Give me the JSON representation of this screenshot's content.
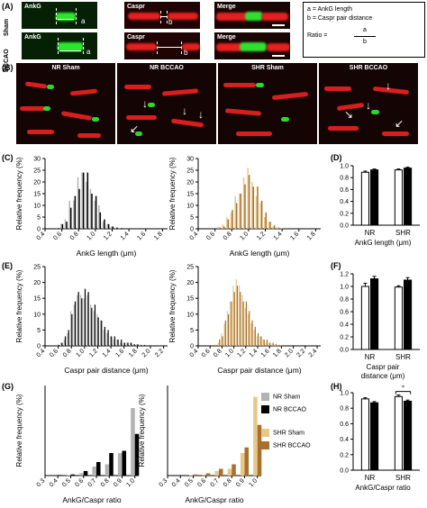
{
  "panel_labels": {
    "A": "(A)",
    "B": "(B)",
    "C": "(C)",
    "D": "(D)",
    "E": "(E)",
    "F": "(F)",
    "G": "(G)",
    "H": "(H)"
  },
  "panelA": {
    "rows": [
      "Sham",
      "BCCAO"
    ],
    "cols": [
      "AnkG",
      "Caspr",
      "Merge"
    ],
    "marks": {
      "a": "a",
      "b": "b"
    },
    "legend": {
      "line1": "a = AnkG length",
      "line2": "b = Caspr pair distance",
      "ratio_label": "Ratio  =",
      "num": "a",
      "den": "b"
    }
  },
  "panelB": {
    "titles": [
      "NR Sham",
      "NR BCCAO",
      "SHR Sham",
      "SHR BCCAO"
    ]
  },
  "legend_nr": {
    "sham": "NR Sham",
    "bccao": "NR BCCAO"
  },
  "legend_shr": {
    "sham": "SHR Sham",
    "bccao": "SHR BCCAO"
  },
  "colors": {
    "nr_sham": "#b3b3b3",
    "nr_bccao": "#000000",
    "shr_sham": "#e6c98a",
    "shr_bccao": "#a86f2e"
  },
  "chart_data": [
    {
      "id": "C-left",
      "type": "bar",
      "ylabel": "Relative frequency (%)",
      "xlabel": "AnkG length (μm)",
      "ylim": [
        0,
        30
      ],
      "yticks": [
        0,
        5,
        10,
        15,
        20,
        25,
        30
      ],
      "xticks": [
        "0.4",
        "0.6",
        "0.8",
        "1.0",
        "1.2",
        "1.4",
        "1.6",
        "1.8"
      ],
      "x": [
        0.55,
        0.6,
        0.65,
        0.7,
        0.75,
        0.8,
        0.85,
        0.9,
        0.95,
        1.0,
        1.05,
        1.1,
        1.15,
        1.2,
        1.25,
        1.3
      ],
      "series": [
        {
          "name": "NR Sham",
          "values": [
            0.5,
            2,
            4,
            12,
            12,
            22,
            24,
            20,
            17,
            12,
            10,
            3,
            2,
            1,
            0.5,
            0.3
          ]
        },
        {
          "name": "NR BCCAO",
          "values": [
            0.3,
            2,
            3,
            9,
            14,
            17,
            24,
            24,
            15,
            14,
            7,
            4,
            2,
            1,
            0.5,
            0.3
          ]
        }
      ]
    },
    {
      "id": "C-right",
      "type": "bar",
      "ylabel": "Relative frequency (%)",
      "xlabel": "AnkG length (μm)",
      "ylim": [
        0,
        30
      ],
      "yticks": [
        0,
        5,
        10,
        15,
        20,
        25,
        30
      ],
      "xticks": [
        "0.4",
        "0.6",
        "0.8",
        "1.0",
        "1.2",
        "1.4",
        "1.6",
        "1.8"
      ],
      "x": [
        0.65,
        0.7,
        0.75,
        0.8,
        0.85,
        0.9,
        0.95,
        1.0,
        1.05,
        1.1,
        1.15,
        1.2,
        1.25,
        1.3,
        1.35,
        1.4
      ],
      "series": [
        {
          "name": "SHR Sham",
          "values": [
            1,
            2,
            5,
            7,
            14,
            15,
            22,
            26,
            20,
            14,
            11,
            5,
            3,
            1,
            0.5,
            0.3
          ]
        },
        {
          "name": "SHR BCCAO",
          "values": [
            0.5,
            1,
            4,
            8,
            11,
            15,
            19,
            23,
            18,
            18,
            12,
            7,
            3,
            1.5,
            0.5,
            0.3
          ]
        }
      ]
    },
    {
      "id": "D",
      "type": "bar",
      "xlabel": "AnkG length (μm)",
      "ylim": [
        0,
        1.0
      ],
      "yticks": [
        "0.0",
        "0.2",
        "0.4",
        "0.6",
        "0.8",
        "1.0"
      ],
      "categories": [
        "NR",
        "SHR"
      ],
      "series": [
        {
          "name": "Sham",
          "values": [
            0.89,
            0.93
          ],
          "err": [
            0.02,
            0.015
          ]
        },
        {
          "name": "BCCAO",
          "values": [
            0.93,
            0.96
          ],
          "err": [
            0.015,
            0.015
          ]
        }
      ]
    },
    {
      "id": "E-left",
      "type": "bar",
      "ylabel": "Relative frequency (%)",
      "xlabel": "Caspr pair distance (μm)",
      "ylim": [
        0,
        25
      ],
      "yticks": [
        0,
        5,
        10,
        15,
        20,
        25
      ],
      "xticks": [
        "0.4",
        "0.6",
        "0.8",
        "1.0",
        "1.2",
        "1.4",
        "1.6",
        "1.8",
        "2.0",
        "2.2"
      ],
      "x": [
        0.6,
        0.65,
        0.7,
        0.75,
        0.8,
        0.85,
        0.9,
        0.95,
        1.0,
        1.05,
        1.1,
        1.15,
        1.2,
        1.25,
        1.3,
        1.35,
        1.4,
        1.45,
        1.5,
        1.55,
        1.6,
        1.65,
        1.7,
        1.75,
        1.8,
        1.85,
        1.9
      ],
      "series": [
        {
          "name": "NR Sham",
          "values": [
            0.5,
            1,
            2,
            4,
            11,
            13,
            16,
            16,
            15,
            16,
            13,
            11,
            10,
            8,
            5,
            4,
            3,
            2,
            2,
            1,
            1,
            1,
            1,
            0.5,
            0.5,
            0.3,
            0.3
          ]
        },
        {
          "name": "NR BCCAO",
          "values": [
            0.3,
            1,
            3,
            5,
            10,
            14,
            17,
            15,
            18,
            17,
            12,
            13,
            9,
            8,
            6,
            5,
            3,
            3,
            2,
            2,
            1,
            1,
            1,
            0.5,
            0.5,
            0.3,
            0.3
          ]
        }
      ]
    },
    {
      "id": "E-right",
      "type": "bar",
      "ylabel": "Relative frequency (%)",
      "xlabel": "Caspr pair distance (μm)",
      "ylim": [
        0,
        25
      ],
      "yticks": [
        0,
        5,
        10,
        15,
        20,
        25
      ],
      "xticks": [
        "0.4",
        "0.6",
        "0.8",
        "1.0",
        "1.2",
        "1.4",
        "1.6",
        "1.8",
        "2.0",
        "2.2",
        "2.4"
      ],
      "x": [
        0.7,
        0.75,
        0.8,
        0.85,
        0.9,
        0.95,
        1.0,
        1.05,
        1.1,
        1.15,
        1.2,
        1.25,
        1.3,
        1.35,
        1.4,
        1.45,
        1.5,
        1.55,
        1.6,
        1.65,
        1.7,
        1.75,
        1.8
      ],
      "series": [
        {
          "name": "SHR Sham",
          "values": [
            0.5,
            1,
            4,
            7,
            11,
            14,
            19,
            21,
            19,
            16,
            12,
            10,
            7,
            5,
            3,
            3,
            2,
            1,
            1,
            0.5,
            0.5,
            0.3,
            0.3
          ]
        },
        {
          "name": "SHR BCCAO",
          "values": [
            0.3,
            2,
            3,
            8,
            10,
            14,
            17,
            19,
            17,
            14,
            14,
            11,
            8,
            6,
            4,
            3,
            2,
            2,
            1,
            1,
            0.5,
            0.3,
            0.3
          ]
        }
      ]
    },
    {
      "id": "F",
      "type": "bar",
      "xlabel": "Caspr pair distance (μm)",
      "ylim": [
        0,
        1.2
      ],
      "yticks": [
        "0.0",
        "0.2",
        "0.4",
        "0.6",
        "0.8",
        "1.0",
        "1.2"
      ],
      "categories": [
        "NR",
        "SHR"
      ],
      "series": [
        {
          "name": "Sham",
          "values": [
            1.0,
            0.99
          ],
          "err": [
            0.05,
            0.02
          ]
        },
        {
          "name": "BCCAO",
          "values": [
            1.12,
            1.1
          ],
          "err": [
            0.04,
            0.04
          ]
        }
      ]
    },
    {
      "id": "G-left",
      "type": "bar",
      "ylabel": "Relative frequency (%)",
      "xlabel": "AnkG/Caspr ratio",
      "ylim": [
        0,
        0.8
      ],
      "yticks": [],
      "xticks": [
        "0.3",
        "0.4",
        "0.5",
        "0.6",
        "0.7",
        "0.8",
        "0.9",
        "1.0"
      ],
      "x": [
        0.3,
        0.4,
        0.5,
        0.6,
        0.7,
        0.8,
        0.9,
        1.0
      ],
      "series": [
        {
          "name": "NR Sham",
          "values": [
            0.0,
            0.0,
            0.005,
            0.02,
            0.08,
            0.1,
            0.2,
            0.6
          ]
        },
        {
          "name": "NR BCCAO",
          "values": [
            0.0,
            0.005,
            0.01,
            0.04,
            0.12,
            0.2,
            0.22,
            0.37
          ]
        }
      ]
    },
    {
      "id": "G-right",
      "type": "bar",
      "ylabel": "Relative frequency (%)",
      "xlabel": "AnkG/Caspr ratio",
      "ylim": [
        0,
        0.8
      ],
      "yticks": [],
      "xticks": [
        "0.3",
        "0.4",
        "0.5",
        "0.6",
        "0.7",
        "0.8",
        "0.9",
        "1.0"
      ],
      "x": [
        0.3,
        0.4,
        0.5,
        0.6,
        0.7,
        0.8,
        0.9,
        1.0
      ],
      "series": [
        {
          "name": "SHR Sham",
          "values": [
            0.0,
            0.0,
            0.005,
            0.01,
            0.04,
            0.06,
            0.2,
            0.7
          ]
        },
        {
          "name": "SHR BCCAO",
          "values": [
            0.0,
            0.0,
            0.01,
            0.02,
            0.06,
            0.1,
            0.25,
            0.45
          ]
        }
      ]
    },
    {
      "id": "H",
      "type": "bar",
      "xlabel": "AnkG/Caspr ratio",
      "ylim": [
        0,
        1.0
      ],
      "yticks": [
        "0.0",
        "0.2",
        "0.4",
        "0.6",
        "0.8",
        "1.0"
      ],
      "categories": [
        "NR",
        "SHR"
      ],
      "annotation": "*",
      "series": [
        {
          "name": "Sham",
          "values": [
            0.92,
            0.95
          ],
          "err": [
            0.015,
            0.02
          ]
        },
        {
          "name": "BCCAO",
          "values": [
            0.87,
            0.89
          ],
          "err": [
            0.015,
            0.015
          ]
        }
      ]
    }
  ]
}
